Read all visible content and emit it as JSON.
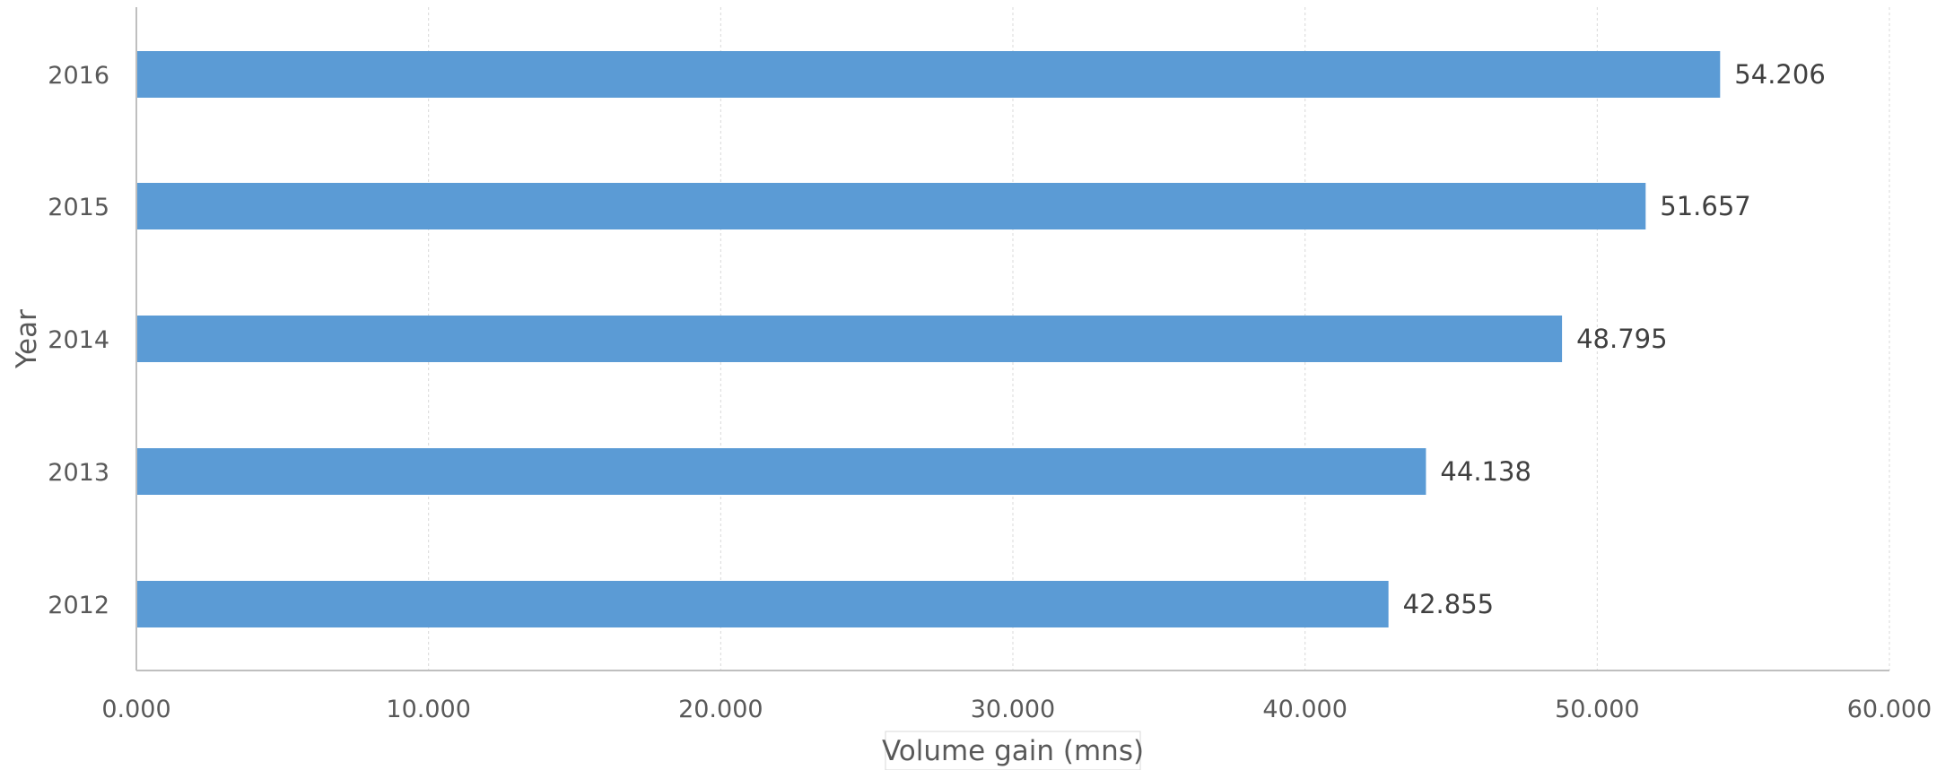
{
  "chart_data": {
    "type": "bar",
    "orientation": "horizontal",
    "categories": [
      "2012",
      "2013",
      "2014",
      "2015",
      "2016"
    ],
    "values": [
      42.855,
      44.138,
      48.795,
      51.657,
      54.206
    ],
    "data_labels": [
      "42.855",
      "44.138",
      "48.795",
      "51.657",
      "54.206"
    ],
    "xlabel": "Volume gain (mns)",
    "ylabel": "Year",
    "xlim": [
      0,
      60
    ],
    "x_ticks": [
      0,
      10,
      20,
      30,
      40,
      50,
      60
    ],
    "x_tick_labels": [
      "0.000",
      "10.000",
      "20.000",
      "30.000",
      "40.000",
      "50.000",
      "60.000"
    ],
    "grid": true,
    "legend": "none",
    "bar_color": "#5b9bd5"
  }
}
